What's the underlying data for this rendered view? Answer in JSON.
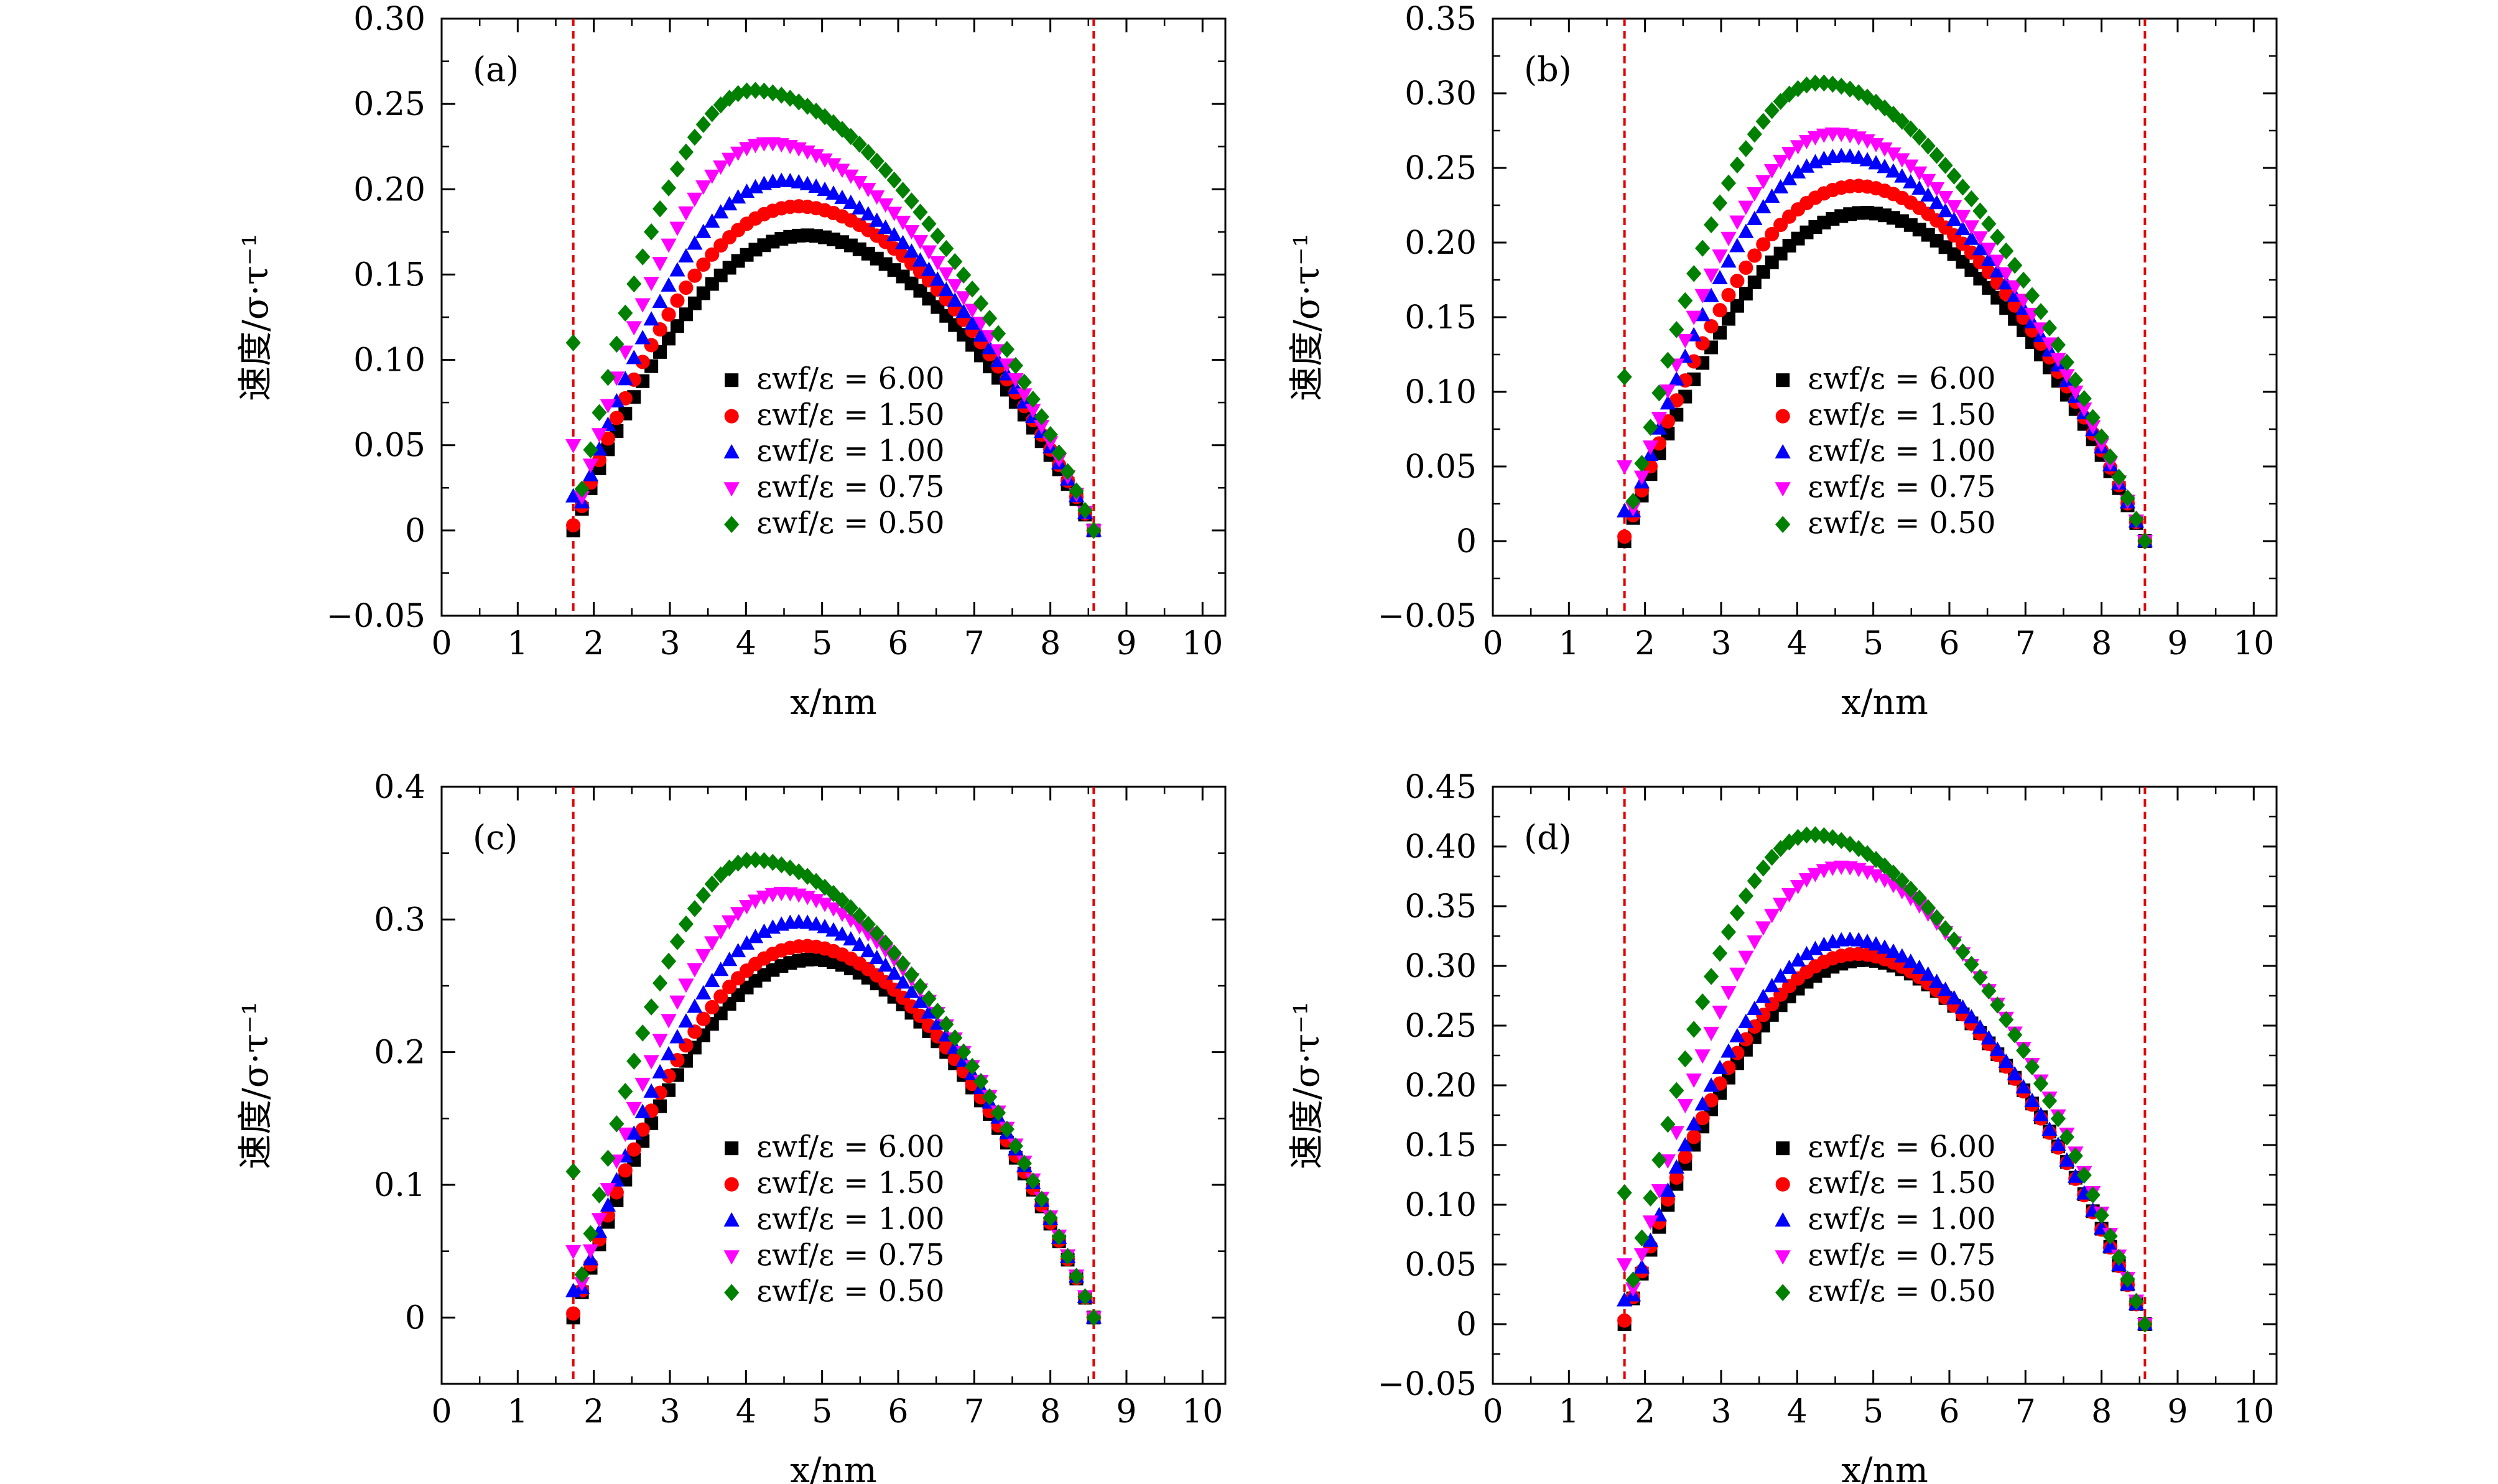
{
  "figure": {
    "xlabel": "x/nm",
    "ylabel": "速度/σ·τ⁻¹"
  },
  "colors": {
    "axis": "#000000",
    "wall_line": "#e00000",
    "series": [
      "#000000",
      "#ff0000",
      "#0000ff",
      "#ff00ff",
      "#008000"
    ]
  },
  "legend_labels": [
    "εwf/ε = 6.00",
    "εwf/ε = 1.50",
    "εwf/ε = 1.00",
    "εwf/ε = 0.75",
    "εwf/ε = 0.50"
  ],
  "chart_data": [
    {
      "type": "scatter",
      "panel": "(a)",
      "xlabel": "x/nm",
      "ylabel": "速度/σ·τ⁻¹",
      "xlim": [
        0,
        10.3
      ],
      "ylim": [
        -0.05,
        0.3
      ],
      "xticks": [
        "0",
        "1",
        "2",
        "3",
        "4",
        "5",
        "6",
        "7",
        "8",
        "9",
        "10"
      ],
      "yticks": [
        "−0.05",
        "0",
        "0.05",
        "0.10",
        "0.15",
        "0.20",
        "0.25",
        "0.30"
      ],
      "ytick_values": [
        -0.05,
        0,
        0.05,
        0.1,
        0.15,
        0.2,
        0.25,
        0.3
      ],
      "wall_lines_x": [
        1.73,
        8.57
      ],
      "legend": "center",
      "series": [
        {
          "name": "εwf/ε = 6.00",
          "marker": "square",
          "peak_x": 4.8,
          "peak": 0.173
        },
        {
          "name": "εwf/ε = 1.50",
          "marker": "circle",
          "peak_x": 4.7,
          "peak": 0.19
        },
        {
          "name": "εwf/ε = 1.00",
          "marker": "triangle-up",
          "peak_x": 4.5,
          "peak": 0.205
        },
        {
          "name": "εwf/ε = 0.75",
          "marker": "triangle-down",
          "peak_x": 4.3,
          "peak": 0.227
        },
        {
          "name": "εwf/ε = 0.50",
          "marker": "diamond",
          "peak_x": 4.1,
          "peak": 0.258
        }
      ]
    },
    {
      "type": "scatter",
      "panel": "(b)",
      "xlabel": "x/nm",
      "ylabel": "速度/σ·τ⁻¹",
      "xlim": [
        0,
        10.3
      ],
      "ylim": [
        -0.05,
        0.35
      ],
      "xticks": [
        "0",
        "1",
        "2",
        "3",
        "4",
        "5",
        "6",
        "7",
        "8",
        "9",
        "10"
      ],
      "yticks": [
        "−0.05",
        "0",
        "0.05",
        "0.10",
        "0.15",
        "0.20",
        "0.25",
        "0.30",
        "0.35"
      ],
      "ytick_values": [
        -0.05,
        0,
        0.05,
        0.1,
        0.15,
        0.2,
        0.25,
        0.3,
        0.35
      ],
      "wall_lines_x": [
        1.73,
        8.57
      ],
      "legend": "center",
      "series": [
        {
          "name": "εwf/ε = 6.00",
          "marker": "square",
          "peak_x": 4.9,
          "peak": 0.22
        },
        {
          "name": "εwf/ε = 1.50",
          "marker": "circle",
          "peak_x": 4.8,
          "peak": 0.238
        },
        {
          "name": "εwf/ε = 1.00",
          "marker": "triangle-up",
          "peak_x": 4.6,
          "peak": 0.258
        },
        {
          "name": "εwf/ε = 0.75",
          "marker": "triangle-down",
          "peak_x": 4.5,
          "peak": 0.273
        },
        {
          "name": "εwf/ε = 0.50",
          "marker": "diamond",
          "peak_x": 4.3,
          "peak": 0.307
        }
      ]
    },
    {
      "type": "scatter",
      "panel": "(c)",
      "xlabel": "x/nm",
      "ylabel": "速度/σ·τ⁻¹",
      "xlim": [
        0,
        10.3
      ],
      "ylim": [
        -0.05,
        0.4
      ],
      "xticks": [
        "0",
        "1",
        "2",
        "3",
        "4",
        "5",
        "6",
        "7",
        "8",
        "9",
        "10"
      ],
      "yticks": [
        "0",
        "0.1",
        "0.2",
        "0.3",
        "0.4"
      ],
      "ytick_values": [
        0,
        0.1,
        0.2,
        0.3,
        0.4
      ],
      "wall_lines_x": [
        1.73,
        8.57
      ],
      "legend": "center",
      "series": [
        {
          "name": "εwf/ε = 6.00",
          "marker": "square",
          "peak_x": 4.9,
          "peak": 0.27
        },
        {
          "name": "εwf/ε = 1.50",
          "marker": "circle",
          "peak_x": 4.8,
          "peak": 0.28
        },
        {
          "name": "εwf/ε = 1.00",
          "marker": "triangle-up",
          "peak_x": 4.7,
          "peak": 0.298
        },
        {
          "name": "εwf/ε = 0.75",
          "marker": "triangle-down",
          "peak_x": 4.5,
          "peak": 0.32
        },
        {
          "name": "εwf/ε = 0.50",
          "marker": "diamond",
          "peak_x": 4.1,
          "peak": 0.345
        }
      ]
    },
    {
      "type": "scatter",
      "panel": "(d)",
      "xlabel": "x/nm",
      "ylabel": "速度/σ·τ⁻¹",
      "xlim": [
        0,
        10.3
      ],
      "ylim": [
        -0.05,
        0.45
      ],
      "xticks": [
        "0",
        "1",
        "2",
        "3",
        "4",
        "5",
        "6",
        "7",
        "8",
        "9",
        "10"
      ],
      "yticks": [
        "−0.05",
        "0",
        "0.05",
        "0.10",
        "0.15",
        "0.20",
        "0.25",
        "0.30",
        "0.35",
        "0.40",
        "0.45"
      ],
      "ytick_values": [
        -0.05,
        0,
        0.05,
        0.1,
        0.15,
        0.2,
        0.25,
        0.3,
        0.35,
        0.4,
        0.45
      ],
      "wall_lines_x": [
        1.73,
        8.57
      ],
      "legend": "center",
      "series": [
        {
          "name": "εwf/ε = 6.00",
          "marker": "square",
          "peak_x": 4.9,
          "peak": 0.305
        },
        {
          "name": "εwf/ε = 1.50",
          "marker": "circle",
          "peak_x": 4.8,
          "peak": 0.31
        },
        {
          "name": "εwf/ε = 1.00",
          "marker": "triangle-up",
          "peak_x": 4.7,
          "peak": 0.322
        },
        {
          "name": "εwf/ε = 0.75",
          "marker": "triangle-down",
          "peak_x": 4.6,
          "peak": 0.383
        },
        {
          "name": "εwf/ε = 0.50",
          "marker": "diamond",
          "peak_x": 4.2,
          "peak": 0.41
        }
      ]
    }
  ]
}
